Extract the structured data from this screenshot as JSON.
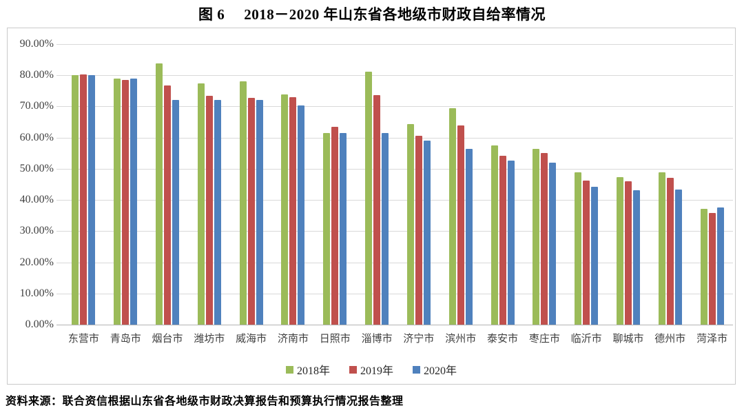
{
  "title": {
    "figure_label": "图 6",
    "text": "2018－2020 年山东省各地级市财政自给率情况"
  },
  "footer": {
    "text": "资料来源：联合资信根据山东省各地级市财政决算报告和预算执行情况报告整理"
  },
  "colors": {
    "grid": "#D9D9D9",
    "baseline": "#B3B3B3",
    "axis_text": "#3F3F3F",
    "box_border": "#C9C9C9",
    "series_2018": "#9BBB59",
    "series_2019": "#C0504D",
    "series_2020": "#4F81BD"
  },
  "chart_data": {
    "type": "bar",
    "title": "图 6 2018－2020 年山东省各地级市财政自给率情况",
    "categories": [
      "东营市",
      "青岛市",
      "烟台市",
      "潍坊市",
      "威海市",
      "济南市",
      "日照市",
      "淄博市",
      "济宁市",
      "滨州市",
      "泰安市",
      "枣庄市",
      "临沂市",
      "聊城市",
      "德州市",
      "菏泽市"
    ],
    "series": [
      {
        "name": "2018年",
        "color": "#9BBB59",
        "values": [
          80.0,
          78.9,
          83.9,
          77.5,
          78.0,
          73.8,
          61.5,
          81.2,
          64.3,
          69.5,
          57.4,
          56.4,
          48.8,
          47.3,
          48.8,
          37.2
        ]
      },
      {
        "name": "2019年",
        "color": "#C0504D",
        "values": [
          80.3,
          78.6,
          76.7,
          73.4,
          72.8,
          73.0,
          63.5,
          73.6,
          60.6,
          64.0,
          54.1,
          55.0,
          46.3,
          45.9,
          47.0,
          35.9
        ]
      },
      {
        "name": "2020年",
        "color": "#4F81BD",
        "values": [
          80.1,
          78.9,
          72.0,
          72.0,
          72.0,
          70.3,
          61.5,
          61.4,
          59.0,
          56.5,
          52.6,
          51.9,
          44.2,
          43.2,
          43.3,
          37.7
        ]
      }
    ],
    "xlabel": "",
    "ylabel": "",
    "unit": "percent",
    "ylim": [
      0,
      90
    ],
    "ytick_step": 10,
    "ytick_labels": [
      "0.00%",
      "10.00%",
      "20.00%",
      "30.00%",
      "40.00%",
      "50.00%",
      "60.00%",
      "70.00%",
      "80.00%",
      "90.00%"
    ],
    "grid": true,
    "legend_position": "bottom"
  }
}
